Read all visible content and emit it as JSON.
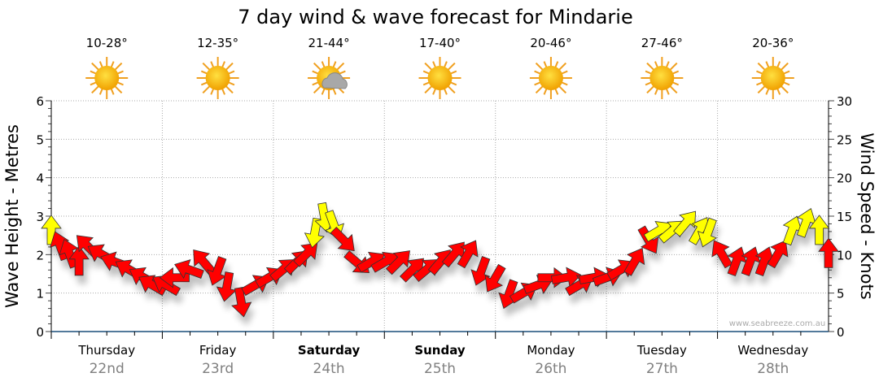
{
  "chart_data": {
    "type": "scatter",
    "title": "7 day wind & wave forecast for Mindarie",
    "ylabel_left": "Wave Height - Metres",
    "ylabel_right": "Wind Speed - Knots",
    "ylim_left": [
      0,
      6
    ],
    "ylim_right": [
      0,
      30
    ],
    "yticks_left": [
      "0",
      "1",
      "2",
      "3",
      "4",
      "5",
      "6"
    ],
    "yticks_right": [
      "0",
      "5",
      "10",
      "15",
      "20",
      "25",
      "30"
    ],
    "grid": true,
    "watermark": "www.seabreeze.com.au",
    "hours_total": 168,
    "yellow_threshold_knots": 12.5,
    "days": [
      {
        "weekday": "Thursday",
        "date": "22nd",
        "temps": "10-28°",
        "weather": "sunny",
        "bold": false
      },
      {
        "weekday": "Friday",
        "date": "23rd",
        "temps": "12-35°",
        "weather": "sunny",
        "bold": false
      },
      {
        "weekday": "Saturday",
        "date": "24th",
        "temps": "21-44°",
        "weather": "partly-cloudy",
        "bold": true
      },
      {
        "weekday": "Sunday",
        "date": "25th",
        "temps": "17-40°",
        "weather": "sunny",
        "bold": true
      },
      {
        "weekday": "Monday",
        "date": "26th",
        "temps": "20-46°",
        "weather": "sunny",
        "bold": false
      },
      {
        "weekday": "Tuesday",
        "date": "27th",
        "temps": "27-46°",
        "weather": "sunny",
        "bold": false
      },
      {
        "weekday": "Wednesday",
        "date": "28th",
        "temps": "20-36°",
        "weather": "sunny",
        "bold": false
      }
    ],
    "wind_series": {
      "name": "Wind speed (knots) with direction arrow bearing (deg)",
      "points": [
        [
          0,
          13,
          0
        ],
        [
          2,
          11,
          340
        ],
        [
          4,
          10,
          340
        ],
        [
          6,
          9,
          0
        ],
        [
          8,
          11,
          315
        ],
        [
          11,
          10,
          300
        ],
        [
          14,
          9,
          290
        ],
        [
          17,
          8,
          300
        ],
        [
          20,
          7,
          300
        ],
        [
          22,
          6,
          300
        ],
        [
          25,
          6,
          300
        ],
        [
          27,
          7,
          270
        ],
        [
          30,
          8,
          290
        ],
        [
          33,
          9,
          320
        ],
        [
          36,
          8,
          200
        ],
        [
          38,
          6,
          190
        ],
        [
          41,
          4,
          170
        ],
        [
          44,
          6,
          60
        ],
        [
          47,
          7,
          60
        ],
        [
          50,
          8,
          50
        ],
        [
          53,
          9,
          45
        ],
        [
          55,
          10,
          45
        ],
        [
          57,
          13,
          190
        ],
        [
          59,
          15,
          170
        ],
        [
          61,
          14,
          160
        ],
        [
          63,
          12,
          135
        ],
        [
          66,
          9,
          130
        ],
        [
          69,
          9,
          60
        ],
        [
          72,
          9,
          60
        ],
        [
          75,
          9,
          45
        ],
        [
          78,
          8,
          45
        ],
        [
          81,
          8,
          50
        ],
        [
          84,
          9,
          40
        ],
        [
          87,
          10,
          40
        ],
        [
          90,
          10,
          30
        ],
        [
          93,
          8,
          200
        ],
        [
          96,
          7,
          210
        ],
        [
          99,
          5,
          200
        ],
        [
          102,
          5,
          60
        ],
        [
          105,
          6,
          70
        ],
        [
          108,
          7,
          90
        ],
        [
          111,
          7,
          80
        ],
        [
          114,
          6,
          60
        ],
        [
          117,
          7,
          80
        ],
        [
          120,
          7,
          70
        ],
        [
          123,
          8,
          60
        ],
        [
          126,
          9,
          30
        ],
        [
          129,
          12,
          150
        ],
        [
          131,
          13,
          60
        ],
        [
          134,
          13,
          50
        ],
        [
          137,
          14,
          40
        ],
        [
          140,
          13,
          30
        ],
        [
          142,
          13,
          200
        ],
        [
          145,
          10,
          330
        ],
        [
          148,
          9,
          20
        ],
        [
          151,
          9,
          20
        ],
        [
          154,
          9,
          20
        ],
        [
          157,
          10,
          30
        ],
        [
          160,
          13,
          20
        ],
        [
          163,
          14,
          20
        ],
        [
          166,
          13,
          0
        ],
        [
          168,
          10,
          0
        ]
      ]
    },
    "colors": {
      "strong": "#ffff00",
      "light": "#ff0000",
      "axis": "#1a4f7a",
      "grid": "#aaaaaa",
      "date": "#808080"
    }
  }
}
